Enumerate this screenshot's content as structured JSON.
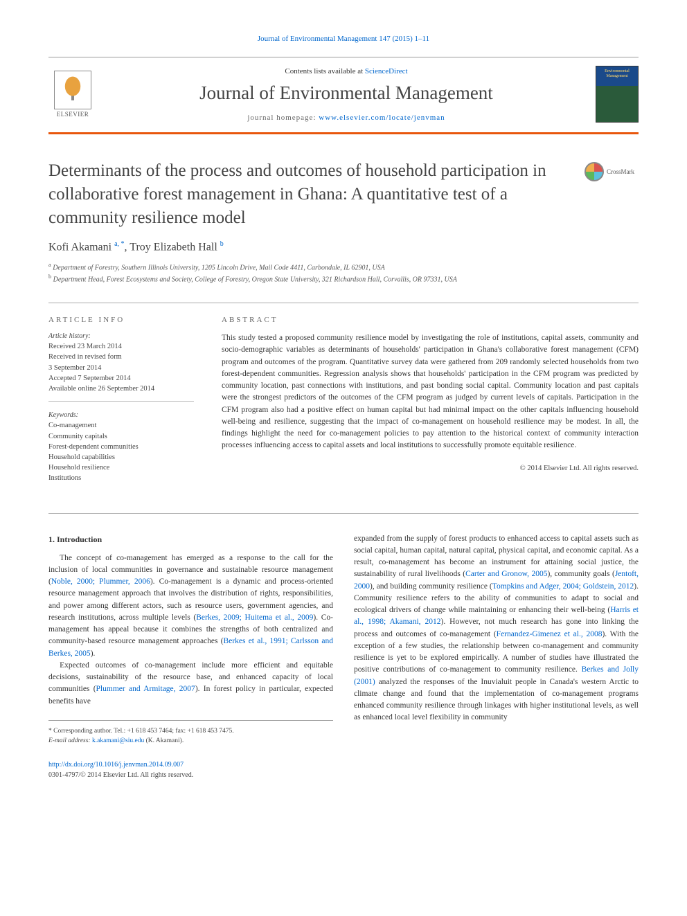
{
  "header": {
    "citation_link": "Journal of Environmental Management 147 (2015) 1–11",
    "contents_prefix": "Contents lists available at ",
    "contents_link": "ScienceDirect",
    "journal_title": "Journal of Environmental Management",
    "homepage_prefix": "journal homepage: ",
    "homepage_url": "www.elsevier.com/locate/jenvman",
    "elsevier_label": "ELSEVIER",
    "cover_text": "Environmental Management",
    "accent_color": "#e8560c",
    "link_color": "#0066cc"
  },
  "crossmark": {
    "label": "CrossMark"
  },
  "article": {
    "title": "Determinants of the process and outcomes of household participation in collaborative forest management in Ghana: A quantitative test of a community resilience model",
    "authors_html": "Kofi Akamani <sup>a, *</sup>, Troy Elizabeth Hall <sup>b</sup>",
    "authors_plain": "Kofi Akamani a, *, Troy Elizabeth Hall b",
    "affiliations": [
      "a Department of Forestry, Southern Illinois University, 1205 Lincoln Drive, Mail Code 4411, Carbondale, IL 62901, USA",
      "b Department Head, Forest Ecosystems and Society, College of Forestry, Oregon State University, 321 Richardson Hall, Corvallis, OR 97331, USA"
    ]
  },
  "info": {
    "heading": "ARTICLE INFO",
    "history_label": "Article history:",
    "history": "Received 23 March 2014\nReceived in revised form\n3 September 2014\nAccepted 7 September 2014\nAvailable online 26 September 2014",
    "keywords_label": "Keywords:",
    "keywords": "Co-management\nCommunity capitals\nForest-dependent communities\nHousehold capabilities\nHousehold resilience\nInstitutions"
  },
  "abstract": {
    "heading": "ABSTRACT",
    "text": "This study tested a proposed community resilience model by investigating the role of institutions, capital assets, community and socio-demographic variables as determinants of households' participation in Ghana's collaborative forest management (CFM) program and outcomes of the program. Quantitative survey data were gathered from 209 randomly selected households from two forest-dependent communities. Regression analysis shows that households' participation in the CFM program was predicted by community location, past connections with institutions, and past bonding social capital. Community location and past capitals were the strongest predictors of the outcomes of the CFM program as judged by current levels of capitals. Participation in the CFM program also had a positive effect on human capital but had minimal impact on the other capitals influencing household well-being and resilience, suggesting that the impact of co-management on household resilience may be modest. In all, the findings highlight the need for co-management policies to pay attention to the historical context of community interaction processes influencing access to capital assets and local institutions to successfully promote equitable resilience.",
    "copyright": "© 2014 Elsevier Ltd. All rights reserved."
  },
  "body": {
    "section_heading": "1. Introduction",
    "p1_a": "The concept of co-management has emerged as a response to the call for the inclusion of local communities in governance and sustainable resource management (",
    "p1_cite1": "Noble, 2000; Plummer, 2006",
    "p1_b": "). Co-management is a dynamic and process-oriented resource management approach that involves the distribution of rights, responsibilities, and power among different actors, such as resource users, government agencies, and research institutions, across multiple levels (",
    "p1_cite2": "Berkes, 2009; Huitema et al., 2009",
    "p1_c": "). Co-management has appeal because it combines the strengths of both centralized and community-based resource management approaches (",
    "p1_cite3": "Berkes et al., 1991; Carlsson and Berkes, 2005",
    "p1_d": ").",
    "p2_a": "Expected outcomes of co-management include more efficient and equitable decisions, sustainability of the resource base, and enhanced capacity of local communities (",
    "p2_cite1": "Plummer and Armitage, 2007",
    "p2_b": "). In forest policy in particular, expected benefits have",
    "p3_a": "expanded from the supply of forest products to enhanced access to capital assets such as social capital, human capital, natural capital, physical capital, and economic capital. As a result, co-management has become an instrument for attaining social justice, the sustainability of rural livelihoods (",
    "p3_cite1": "Carter and Gronow, 2005",
    "p3_b": "), community goals (",
    "p3_cite2": "Jentoft, 2000",
    "p3_c": "), and building community resilience (",
    "p3_cite3": "Tompkins and Adger, 2004; Goldstein, 2012",
    "p3_d": "). Community resilience refers to the ability of communities to adapt to social and ecological drivers of change while maintaining or enhancing their well-being (",
    "p3_cite4": "Harris et al., 1998; Akamani, 2012",
    "p3_e": "). However, not much research has gone into linking the process and outcomes of co-management (",
    "p3_cite5": "Fernandez-Gimenez et al., 2008",
    "p3_f": "). With the exception of a few studies, the relationship between co-management and community resilience is yet to be explored empirically. A number of studies have illustrated the positive contributions of co-management to community resilience. ",
    "p3_cite6": "Berkes and Jolly (2001)",
    "p3_g": " analyzed the responses of the Inuvialuit people in Canada's western Arctic to climate change and found that the implementation of co-management programs enhanced community resilience through linkages with higher institutional levels, as well as enhanced local level flexibility in community"
  },
  "corresponding": {
    "line": "* Corresponding author. Tel.: +1 618 453 7464; fax: +1 618 453 7475.",
    "email_label": "E-mail address: ",
    "email": "k.akamani@siu.edu",
    "email_suffix": " (K. Akamani)."
  },
  "footer": {
    "doi": "http://dx.doi.org/10.1016/j.jenvman.2014.09.007",
    "issn_line": "0301-4797/© 2014 Elsevier Ltd. All rights reserved."
  }
}
